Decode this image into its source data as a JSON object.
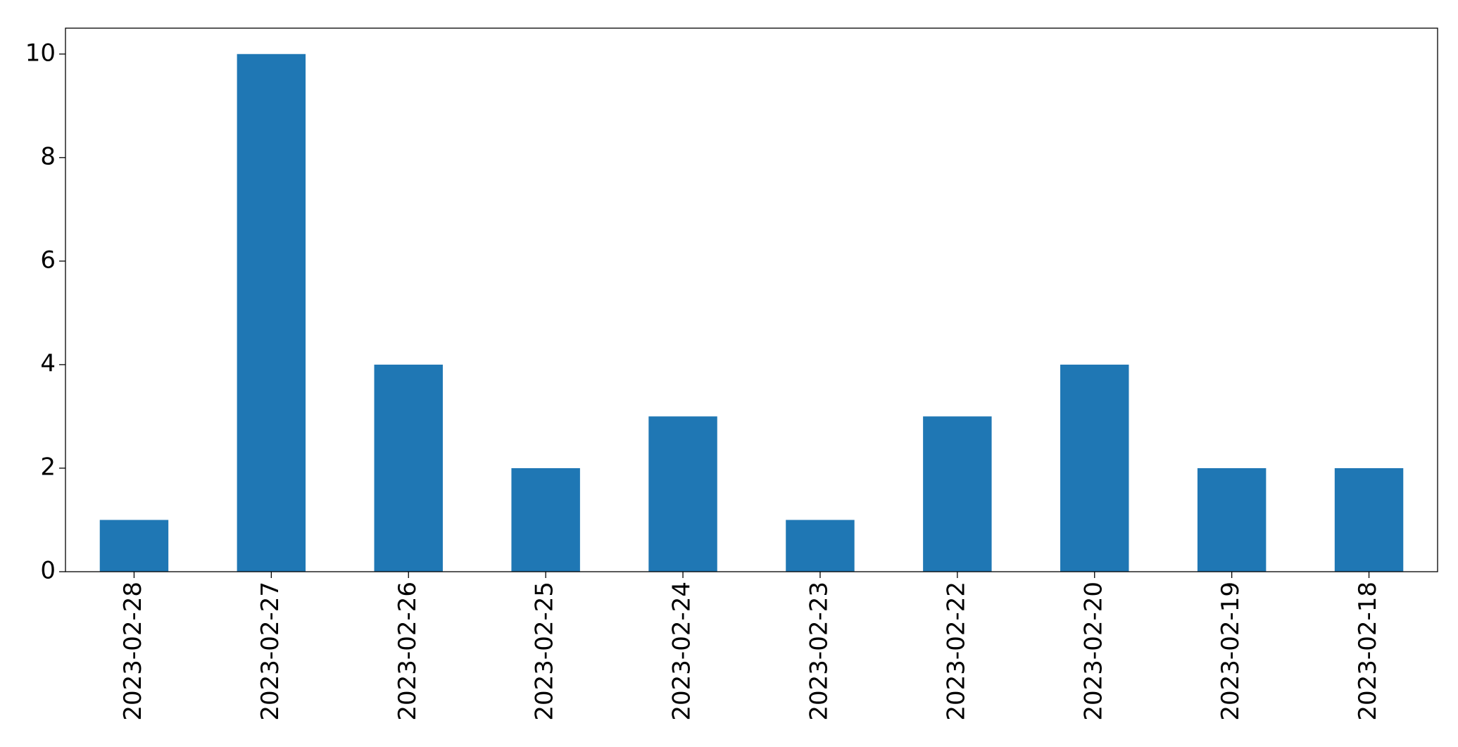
{
  "chart_data": {
    "type": "bar",
    "categories": [
      "2023-02-28",
      "2023-02-27",
      "2023-02-26",
      "2023-02-25",
      "2023-02-24",
      "2023-02-23",
      "2023-02-22",
      "2023-02-20",
      "2023-02-19",
      "2023-02-18"
    ],
    "values": [
      1,
      10,
      4,
      2,
      3,
      1,
      3,
      4,
      2,
      2
    ],
    "color": "#1f77b4",
    "ylim": [
      0,
      10.5
    ],
    "yticks": [
      0,
      2,
      4,
      6,
      8,
      10
    ],
    "grid": false
  }
}
